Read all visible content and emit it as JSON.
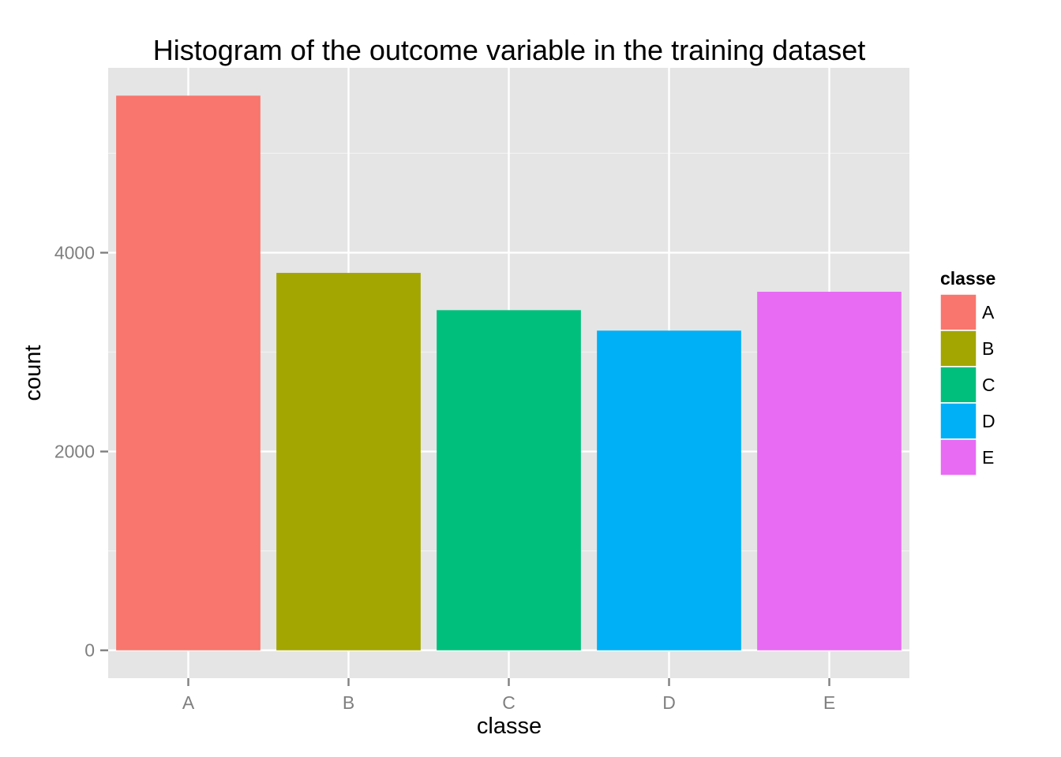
{
  "chart_data": {
    "type": "bar",
    "title": "Histogram of the outcome variable in the training dataset",
    "xlabel": "classe",
    "ylabel": "count",
    "categories": [
      "A",
      "B",
      "C",
      "D",
      "E"
    ],
    "values": [
      5580,
      3797,
      3422,
      3216,
      3607
    ],
    "colors": [
      "#F8766D",
      "#A3A500",
      "#00BF7D",
      "#00B0F6",
      "#E76BF3"
    ],
    "ylim": [
      -280,
      5860
    ],
    "yticks": [
      0,
      2000,
      4000
    ],
    "ytick_labels": [
      "0",
      "2000",
      "4000"
    ],
    "grid": true,
    "panel_background": "#E5E5E5",
    "legend": {
      "title": "classe",
      "position": "right",
      "items": [
        "A",
        "B",
        "C",
        "D",
        "E"
      ]
    }
  }
}
